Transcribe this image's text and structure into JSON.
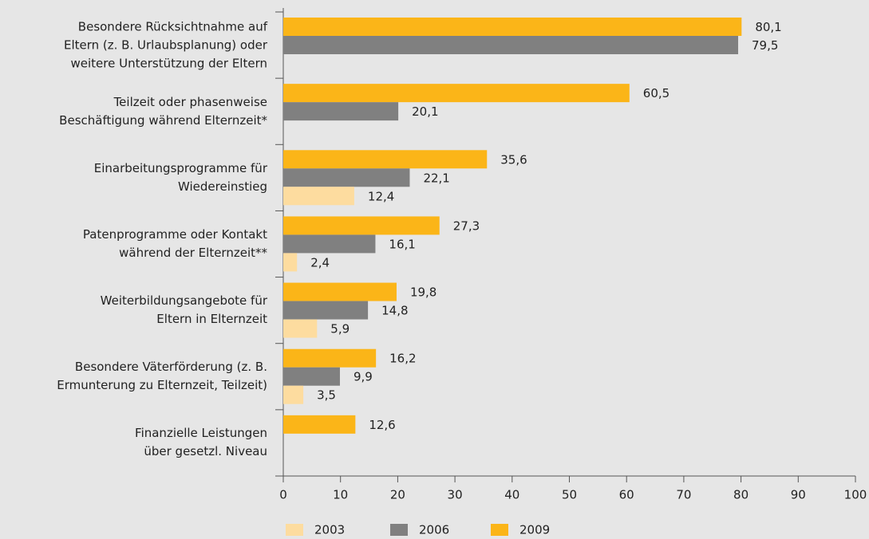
{
  "chart_data": {
    "type": "bar",
    "orientation": "horizontal",
    "categories": [
      "Besondere Rücksichtnahme auf\nEltern (z. B. Urlaubsplanung) oder\nweitere Unterstützung der Eltern",
      "Teilzeit oder phasenweise\nBeschäftigung während Elternzeit*",
      "Einarbeitungsprogramme für\nWiedereinstieg",
      "Patenprogramme oder Kontakt\nwährend der Elternzeit**",
      "Weiterbildungsangebote für\nEltern in Elternzeit",
      "Besondere Väterförderung (z. B.\nErmunterung zu Elternzeit, Teilzeit)",
      "Finanzielle Leistungen\nüber gesetzl. Niveau"
    ],
    "series": [
      {
        "name": "2009",
        "color": "#fbb518",
        "values": [
          80.1,
          60.5,
          35.6,
          27.3,
          19.8,
          16.2,
          12.6
        ],
        "value_labels": [
          "80,1",
          "60,5",
          "35,6",
          "27,3",
          "19,8",
          "16,2",
          "12,6"
        ]
      },
      {
        "name": "2006",
        "color": "#808080",
        "values": [
          79.5,
          20.1,
          22.1,
          16.1,
          14.8,
          9.9,
          null
        ],
        "value_labels": [
          "79,5",
          "20,1",
          "22,1",
          "16,1",
          "14,8",
          "9,9",
          null
        ]
      },
      {
        "name": "2003",
        "color": "#fddc9f",
        "values": [
          null,
          null,
          12.4,
          2.4,
          5.9,
          3.5,
          null
        ],
        "value_labels": [
          null,
          null,
          "12,4",
          "2,4",
          "5,9",
          "3,5",
          null
        ]
      }
    ],
    "xlim": [
      0,
      100
    ],
    "xticks": [
      0,
      10,
      20,
      30,
      40,
      50,
      60,
      70,
      80,
      90,
      100
    ],
    "legend": "bottom"
  }
}
